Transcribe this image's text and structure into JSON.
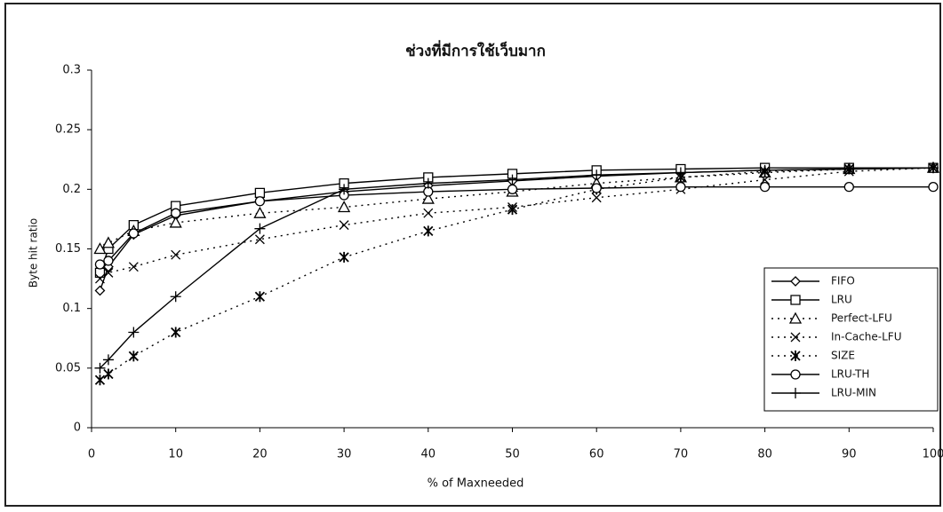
{
  "chart_data": {
    "type": "line",
    "title": "ช่วงที่มีการใช้เว็บมาก",
    "x_label": "% of Maxneeded",
    "y_label": "Byte hit ratio",
    "x": [
      1,
      2,
      5,
      10,
      20,
      30,
      40,
      50,
      60,
      70,
      80,
      90,
      100
    ],
    "xlim": [
      0,
      100
    ],
    "xticks": [
      0,
      10,
      20,
      30,
      40,
      50,
      60,
      70,
      80,
      90,
      100
    ],
    "ylim": [
      0,
      0.3
    ],
    "yticks": [
      0,
      0.05,
      0.1,
      0.15,
      0.2,
      0.25,
      0.3
    ],
    "legend": "right",
    "series": [
      {
        "name": "FIFO",
        "color": "#000000",
        "marker": "diamond",
        "dash": "solid",
        "values": [
          0.115,
          0.135,
          0.162,
          0.178,
          0.19,
          0.198,
          0.203,
          0.207,
          0.211,
          0.214,
          0.216,
          0.217,
          0.218
        ]
      },
      {
        "name": "LRU",
        "color": "#000000",
        "marker": "square",
        "dash": "solid",
        "values": [
          0.13,
          0.15,
          0.17,
          0.186,
          0.197,
          0.205,
          0.21,
          0.213,
          0.216,
          0.217,
          0.218,
          0.218,
          0.218
        ]
      },
      {
        "name": "Perfect-LFU",
        "color": "#000000",
        "marker": "triangle",
        "dash": "dotted",
        "values": [
          0.15,
          0.155,
          0.165,
          0.172,
          0.18,
          0.185,
          0.192,
          0.198,
          0.205,
          0.21,
          0.214,
          0.217,
          0.218
        ]
      },
      {
        "name": "In-Cache-LFU",
        "color": "#000000",
        "marker": "x",
        "dash": "dotted",
        "values": [
          0.125,
          0.13,
          0.135,
          0.145,
          0.158,
          0.17,
          0.18,
          0.185,
          0.193,
          0.2,
          0.208,
          0.215,
          0.218
        ]
      },
      {
        "name": "SIZE",
        "color": "#000000",
        "marker": "asterisk",
        "dash": "dotted",
        "values": [
          0.04,
          0.045,
          0.06,
          0.08,
          0.11,
          0.143,
          0.165,
          0.183,
          0.2,
          0.21,
          0.215,
          0.217,
          0.218
        ]
      },
      {
        "name": "LRU-TH",
        "color": "#000000",
        "marker": "circle",
        "dash": "solid",
        "values": [
          0.137,
          0.14,
          0.163,
          0.18,
          0.19,
          0.195,
          0.198,
          0.2,
          0.201,
          0.202,
          0.202,
          0.202,
          0.202
        ]
      },
      {
        "name": "LRU-MIN",
        "color": "#000000",
        "marker": "plus",
        "dash": "solid",
        "values": [
          0.05,
          0.057,
          0.08,
          0.11,
          0.167,
          0.2,
          0.205,
          0.208,
          0.212,
          0.214,
          0.216,
          0.217,
          0.218
        ]
      }
    ]
  }
}
